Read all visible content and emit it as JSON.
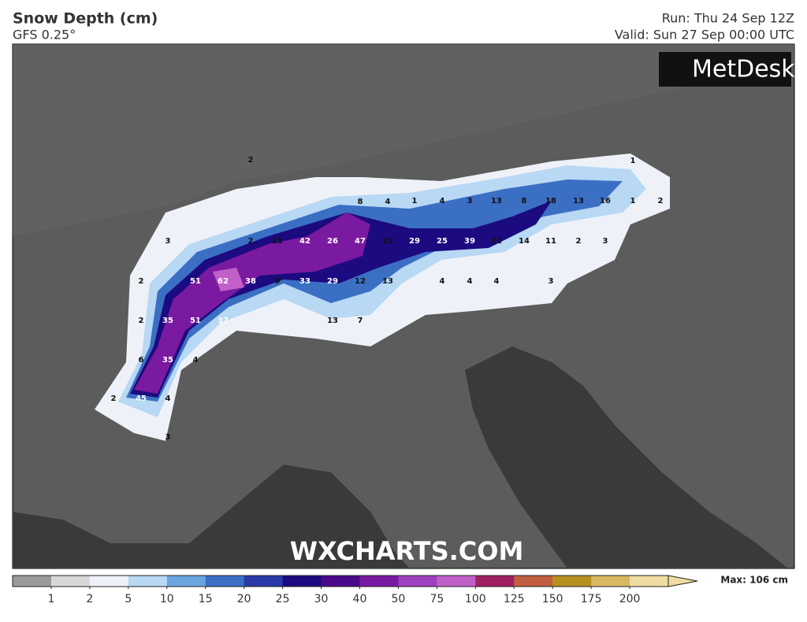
{
  "header": {
    "title": "Snow Depth (cm)",
    "subtitle": "GFS 0.25°",
    "run": "Run: Thu 24 Sep 12Z",
    "valid": "Valid: Sun 27 Sep 00:00 UTC"
  },
  "logo": "MetDesk",
  "watermark": "WXCHARTS.COM",
  "map": {
    "points": [
      2,
      1,
      8,
      4,
      1,
      4,
      3,
      13,
      8,
      18,
      13,
      16,
      1,
      2,
      3,
      2,
      15,
      42,
      26,
      47,
      22,
      29,
      25,
      39,
      22,
      14,
      11,
      2,
      3,
      2,
      51,
      62,
      38,
      9,
      33,
      29,
      12,
      13,
      4,
      4,
      4,
      3,
      2,
      35,
      51,
      37,
      13,
      7,
      6,
      35,
      4,
      2,
      45,
      4,
      3
    ]
  },
  "colorbar": {
    "levels": [
      1,
      2,
      5,
      10,
      15,
      20,
      25,
      30,
      40,
      50,
      75,
      100,
      125,
      150,
      175,
      200
    ],
    "colors": [
      "#9a9a9a",
      "#d8d8d8",
      "#eef2f8",
      "#b8d8f4",
      "#6aa6e0",
      "#3b6fc4",
      "#2a3aa8",
      "#1c0a80",
      "#4a0a8a",
      "#7a1aa0",
      "#a040c0",
      "#c060c8",
      "#a02060",
      "#c06040",
      "#b89020",
      "#d8b860",
      "#f0dca0"
    ],
    "max": "Max: 106 cm"
  }
}
